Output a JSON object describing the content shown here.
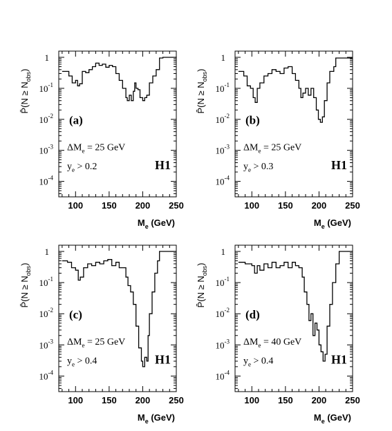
{
  "chart_data": [
    {
      "type": "line",
      "panel": "(a)",
      "xlabel": "M",
      "xlabel_sub": "e",
      "xlabel_unit": " (GeV)",
      "ylabel": "P̄(N ≥ N",
      "ylabel_sub": "obs",
      "ylabel_end": ")",
      "xlim": [
        75,
        250
      ],
      "ylim_log10": [
        -4.5,
        0.2
      ],
      "xticks": [
        "100",
        "150",
        "200",
        "250"
      ],
      "yticks": [
        "1",
        "10^-1",
        "10^-2",
        "10^-3",
        "10^-4"
      ],
      "annot1": "ΔM",
      "annot1_sub": "e",
      "annot1_end": " = 25 GeV",
      "annot2": "y",
      "annot2_sub": "e",
      "annot2_end": " > 0.2",
      "h1": "H1",
      "series": [
        {
          "x": [
            80,
            90,
            95,
            100,
            103,
            106,
            110,
            115,
            120,
            125,
            130,
            135,
            140,
            145,
            150,
            155,
            160,
            165,
            170,
            175,
            177,
            180,
            183,
            186,
            188,
            190,
            193,
            196,
            200,
            203,
            206,
            210,
            215,
            220,
            225,
            230,
            250
          ],
          "y": [
            0.35,
            0.25,
            0.15,
            0.18,
            0.12,
            0.14,
            0.35,
            0.32,
            0.4,
            0.5,
            0.65,
            0.55,
            0.6,
            0.48,
            0.55,
            0.5,
            0.3,
            0.18,
            0.1,
            0.05,
            0.04,
            0.06,
            0.04,
            0.08,
            0.15,
            0.1,
            0.09,
            0.05,
            0.04,
            0.05,
            0.06,
            0.15,
            0.25,
            0.4,
            0.95,
            1.0,
            0.98
          ]
        }
      ]
    },
    {
      "type": "line",
      "panel": "(b)",
      "xlabel": "M",
      "xlabel_sub": "e",
      "xlabel_unit": " (GeV)",
      "ylabel": "P̄(N ≥ N",
      "ylabel_sub": "obs",
      "ylabel_end": ")",
      "xlim": [
        75,
        250
      ],
      "ylim_log10": [
        -4.5,
        0.2
      ],
      "xticks": [
        "100",
        "150",
        "200",
        "250"
      ],
      "yticks": [
        "1",
        "10^-1",
        "10^-2",
        "10^-3",
        "10^-4"
      ],
      "annot1": "ΔM",
      "annot1_sub": "e",
      "annot1_end": " = 25 GeV",
      "annot2": "y",
      "annot2_sub": "e",
      "annot2_end": " > 0.3",
      "h1": "H1",
      "series": [
        {
          "x": [
            80,
            88,
            93,
            98,
            102,
            105,
            108,
            112,
            118,
            124,
            130,
            136,
            142,
            148,
            154,
            160,
            165,
            170,
            173,
            176,
            180,
            184,
            188,
            192,
            196,
            199,
            202,
            205,
            208,
            212,
            216,
            222,
            225,
            250
          ],
          "y": [
            0.35,
            0.25,
            0.12,
            0.1,
            0.05,
            0.035,
            0.1,
            0.15,
            0.25,
            0.3,
            0.4,
            0.35,
            0.3,
            0.45,
            0.5,
            0.3,
            0.18,
            0.1,
            0.05,
            0.07,
            0.1,
            0.06,
            0.1,
            0.05,
            0.02,
            0.01,
            0.008,
            0.012,
            0.04,
            0.15,
            0.35,
            0.5,
            0.95,
            0.95
          ]
        }
      ]
    },
    {
      "type": "line",
      "panel": "(c)",
      "xlabel": "M",
      "xlabel_sub": "e",
      "xlabel_unit": " (GeV)",
      "ylabel": "P̄(N ≥ N",
      "ylabel_sub": "obs",
      "ylabel_end": ")",
      "xlim": [
        75,
        250
      ],
      "ylim_log10": [
        -4.5,
        0.2
      ],
      "xticks": [
        "100",
        "150",
        "200",
        "250"
      ],
      "yticks": [
        "1",
        "10^-1",
        "10^-2",
        "10^-3",
        "10^-4"
      ],
      "annot1": "ΔM",
      "annot1_sub": "e",
      "annot1_end": " = 25 GeV",
      "annot2": "y",
      "annot2_sub": "e",
      "annot2_end": " > 0.4",
      "h1": "H1",
      "series": [
        {
          "x": [
            80,
            88,
            94,
            100,
            104,
            107,
            112,
            118,
            124,
            130,
            136,
            142,
            148,
            154,
            160,
            165,
            170,
            175,
            178,
            182,
            186,
            190,
            194,
            198,
            200,
            203,
            206,
            208,
            210,
            214,
            218,
            222,
            225,
            250
          ],
          "y": [
            0.5,
            0.45,
            0.3,
            0.25,
            0.12,
            0.15,
            0.3,
            0.4,
            0.35,
            0.45,
            0.4,
            0.5,
            0.55,
            0.35,
            0.45,
            0.3,
            0.3,
            0.15,
            0.08,
            0.05,
            0.02,
            0.004,
            0.0008,
            0.0003,
            0.0002,
            0.0004,
            0.0003,
            0.002,
            0.01,
            0.05,
            0.2,
            0.5,
            1.0,
            1.0
          ]
        }
      ]
    },
    {
      "type": "line",
      "panel": "(d)",
      "xlabel": "M",
      "xlabel_sub": "e",
      "xlabel_unit": " (GeV)",
      "ylabel": "P̄(N ≥ N",
      "ylabel_sub": "obs",
      "ylabel_end": ")",
      "xlim": [
        75,
        250
      ],
      "ylim_log10": [
        -4.5,
        0.2
      ],
      "xticks": [
        "100",
        "150",
        "200",
        "250"
      ],
      "yticks": [
        "1",
        "10^-1",
        "10^-2",
        "10^-3",
        "10^-4"
      ],
      "annot1": "ΔM",
      "annot1_sub": "e",
      "annot1_end": " = 40 GeV",
      "annot2": "y",
      "annot2_sub": "e",
      "annot2_end": " > 0.4",
      "h1": "H1",
      "series": [
        {
          "x": [
            80,
            90,
            100,
            104,
            108,
            112,
            118,
            124,
            130,
            136,
            142,
            148,
            154,
            160,
            165,
            170,
            175,
            178,
            182,
            185,
            188,
            191,
            194,
            197,
            200,
            203,
            206,
            209,
            212,
            216,
            220,
            225,
            230,
            250
          ],
          "y": [
            0.45,
            0.4,
            0.35,
            0.2,
            0.35,
            0.25,
            0.4,
            0.3,
            0.45,
            0.3,
            0.35,
            0.45,
            0.3,
            0.45,
            0.35,
            0.3,
            0.15,
            0.05,
            0.02,
            0.006,
            0.01,
            0.002,
            0.005,
            0.003,
            0.001,
            0.0006,
            0.0003,
            0.0005,
            0.004,
            0.02,
            0.1,
            0.4,
            1.0,
            1.0
          ]
        }
      ]
    }
  ]
}
